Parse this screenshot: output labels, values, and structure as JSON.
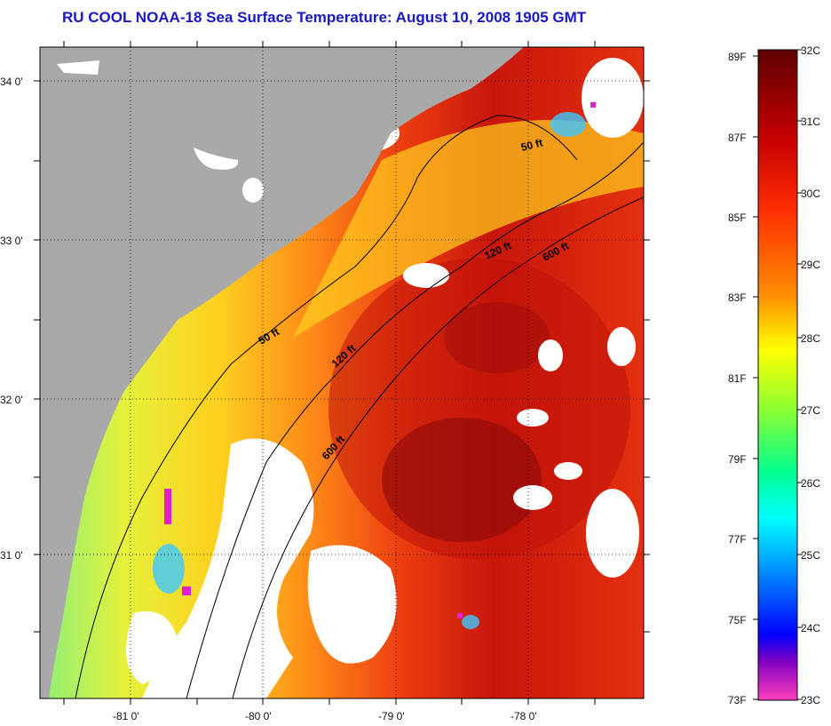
{
  "title": "RU COOL  NOAA-18  Sea Surface Temperature:  August 10, 2008 1905 GMT",
  "map": {
    "lat_labels": [
      "34 0'",
      "33 0'",
      "32 0'",
      "31 0'"
    ],
    "lon_labels": [
      "-81 0'",
      "-80 0'",
      "-79 0'",
      "-78 0'"
    ],
    "isobaths": [
      "50 ft",
      "50 ft",
      "120 ft",
      "120 ft",
      "600 ft",
      "600 ft"
    ]
  },
  "colorbar": {
    "fahrenheit": [
      "89F",
      "87F",
      "85F",
      "83F",
      "81F",
      "79F",
      "77F",
      "75F",
      "73F"
    ],
    "celsius": [
      "32C",
      "31C",
      "30C",
      "29C",
      "28C",
      "27C",
      "26C",
      "25C",
      "24C",
      "23C"
    ]
  },
  "colors": {
    "title": "#1818c8",
    "land": "#a9a9a9",
    "no_data": "#ffffff"
  }
}
